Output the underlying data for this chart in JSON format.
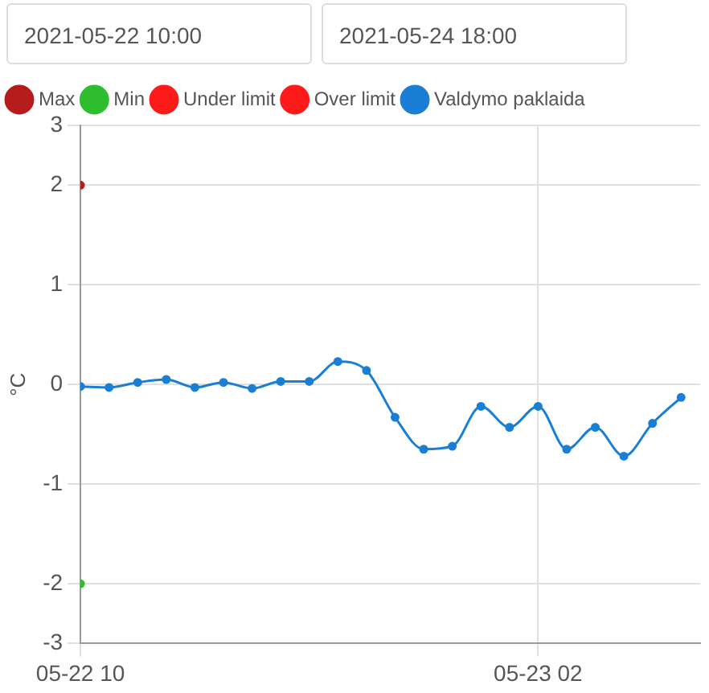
{
  "chart_data": {
    "type": "line",
    "annotations": [
      "2021-05-22 10:00",
      "2021-05-24 18:00"
    ],
    "ylabel": "°C",
    "legend": "top left",
    "grid": true,
    "marker": "circle",
    "line_style": "solid",
    "x": [
      "2021-05-22T10:00",
      "2021-05-22T11:00",
      "2021-05-22T12:00",
      "2021-05-22T13:00",
      "2021-05-22T14:00",
      "2021-05-22T15:00",
      "2021-05-22T16:00",
      "2021-05-22T17:00",
      "2021-05-22T18:00",
      "2021-05-22T19:00",
      "2021-05-22T20:00",
      "2021-05-22T21:00",
      "2021-05-22T22:00",
      "2021-05-22T23:00",
      "2021-05-23T00:00",
      "2021-05-23T01:00",
      "2021-05-23T02:00",
      "2021-05-23T03:00",
      "2021-05-23T04:00",
      "2021-05-23T05:00",
      "2021-05-23T06:00",
      "2021-05-23T07:00"
    ],
    "xlim": [
      "2021-05-22T10:00",
      "2021-05-23T07:40"
    ],
    "xticks": [
      {
        "value": "2021-05-22T10:00",
        "label": "05-22 10"
      },
      {
        "value": "2021-05-23T02:00",
        "label": "05-23 02"
      }
    ],
    "ylim": [
      -2.6,
      2.6
    ],
    "yticks": [
      {
        "value": -2.6,
        "label": "-3"
      },
      -2,
      -1,
      0,
      1,
      2,
      {
        "value": 2.6,
        "label": "3"
      }
    ],
    "series": [
      {
        "name": "Max",
        "color": "#b71c1c",
        "x": [
          "2021-05-22T10:00"
        ],
        "values": [
          2
        ]
      },
      {
        "name": "Min",
        "color": "#2ebd2e",
        "x": [
          "2021-05-22T10:00"
        ],
        "values": [
          -2
        ]
      },
      {
        "name": "Under limit",
        "color": "#ff1a1a",
        "values": [
          null,
          null,
          null,
          null,
          null,
          null,
          null,
          null,
          null,
          null,
          null,
          null,
          null,
          null,
          null,
          null,
          null,
          null,
          null,
          null,
          null,
          null
        ]
      },
      {
        "name": "Over limit",
        "color": "#ff1a1a",
        "values": [
          null,
          null,
          null,
          null,
          null,
          null,
          null,
          null,
          null,
          null,
          null,
          null,
          null,
          null,
          null,
          null,
          null,
          null,
          null,
          null,
          null,
          null
        ]
      },
      {
        "name": "Valdymo paklaida",
        "color": "#1a7fd4",
        "values": [
          -0.02,
          -0.03,
          0.02,
          0.05,
          -0.03,
          0.02,
          -0.04,
          0.03,
          0.03,
          0.23,
          0.14,
          -0.33,
          -0.65,
          -0.62,
          -0.22,
          -0.43,
          -0.22,
          -0.65,
          -0.43,
          -0.72,
          -0.39,
          -0.13
        ]
      }
    ]
  }
}
